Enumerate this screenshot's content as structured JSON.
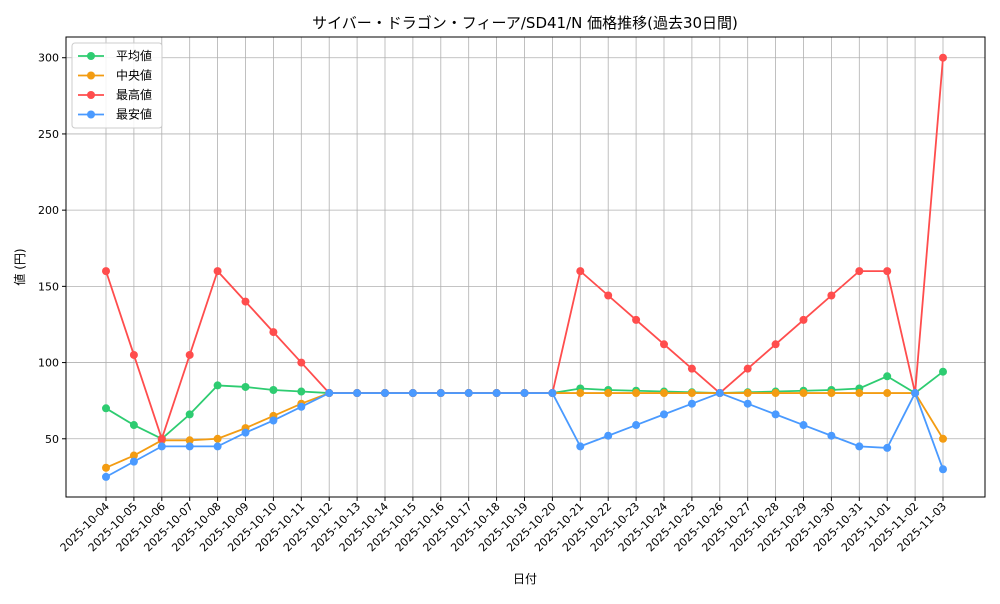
{
  "chart_data": {
    "type": "line",
    "title": "サイバー・ドラゴン・フィーア/SD41/N 価格推移(過去30日間)",
    "xlabel": "日付",
    "ylabel": "値 (円)",
    "ylim": [
      11.8,
      313.6
    ],
    "yticks": [
      50,
      100,
      150,
      200,
      250,
      300
    ],
    "grid": true,
    "legend_position": "top-left",
    "categories": [
      "2025-10-04",
      "2025-10-05",
      "2025-10-06",
      "2025-10-07",
      "2025-10-08",
      "2025-10-09",
      "2025-10-10",
      "2025-10-11",
      "2025-10-12",
      "2025-10-13",
      "2025-10-14",
      "2025-10-15",
      "2025-10-16",
      "2025-10-17",
      "2025-10-18",
      "2025-10-19",
      "2025-10-20",
      "2025-10-21",
      "2025-10-22",
      "2025-10-23",
      "2025-10-24",
      "2025-10-25",
      "2025-10-26",
      "2025-10-27",
      "2025-10-28",
      "2025-10-29",
      "2025-10-30",
      "2025-10-31",
      "2025-11-01",
      "2025-11-02",
      "2025-11-03"
    ],
    "series": [
      {
        "name": "平均値",
        "color": "#2ecc71",
        "values": [
          70,
          59,
          50,
          66,
          85,
          84,
          82,
          81,
          80,
          80,
          80,
          80,
          80,
          80,
          80,
          80,
          80,
          83,
          82,
          81.5,
          81,
          80.5,
          80,
          80.5,
          81,
          81.5,
          82,
          83,
          91,
          80,
          94
        ]
      },
      {
        "name": "中央値",
        "color": "#f39c12",
        "values": [
          31,
          39,
          49,
          49,
          50,
          57,
          65,
          73,
          80,
          80,
          80,
          80,
          80,
          80,
          80,
          80,
          80,
          80,
          80,
          80,
          80,
          80,
          80,
          80,
          80,
          80,
          80,
          80,
          80,
          80,
          50
        ]
      },
      {
        "name": "最高値",
        "color": "#ff4d4d",
        "values": [
          160,
          105,
          50,
          105,
          160,
          140,
          120,
          100,
          80,
          80,
          80,
          80,
          80,
          80,
          80,
          80,
          80,
          160,
          144,
          128,
          112,
          96,
          80,
          96,
          112,
          128,
          144,
          160,
          160,
          80,
          300
        ]
      },
      {
        "name": "最安値",
        "color": "#4a9aff",
        "values": [
          25,
          35,
          45,
          45,
          45,
          54,
          62,
          71,
          80,
          80,
          80,
          80,
          80,
          80,
          80,
          80,
          80,
          45,
          52,
          59,
          66,
          73,
          80,
          73,
          66,
          59,
          52,
          45,
          44,
          80,
          30
        ]
      }
    ]
  }
}
